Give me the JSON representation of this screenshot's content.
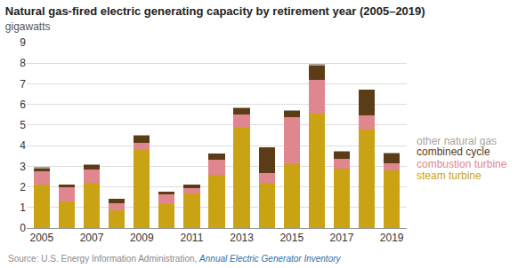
{
  "chart_data": {
    "type": "bar",
    "title": "Natural gas-fired electric generating capacity by retirement year (2005–2019)",
    "subtitle": "gigawatts",
    "source": [
      "Source: U.S. Energy Information Administration,",
      "Annual Electric Generator Inventory"
    ],
    "categories": [
      "2005",
      null,
      "2007",
      null,
      "2009",
      null,
      "2011",
      null,
      "2013",
      null,
      "2015",
      null,
      "2017",
      null,
      "2019"
    ],
    "series": [
      {
        "name": "steam turbine",
        "color": "#c9a314",
        "values": [
          2.1,
          1.3,
          2.2,
          0.85,
          3.8,
          1.15,
          1.7,
          2.6,
          4.85,
          2.2,
          3.1,
          5.55,
          2.9,
          4.8,
          2.8
        ]
      },
      {
        "name": "combustion turbine",
        "color": "#e0868f",
        "values": [
          0.65,
          0.7,
          0.65,
          0.35,
          0.35,
          0.5,
          0.25,
          0.7,
          0.65,
          0.45,
          2.3,
          1.65,
          0.45,
          0.65,
          0.35
        ]
      },
      {
        "name": "combined cycle",
        "color": "#5c3b17",
        "values": [
          0.15,
          0.1,
          0.2,
          0.2,
          0.35,
          0.1,
          0.15,
          0.3,
          0.3,
          1.25,
          0.3,
          0.7,
          0.35,
          1.25,
          0.45
        ]
      },
      {
        "name": "other natural gas",
        "color": "#a9a39a",
        "values": [
          0.05,
          0.03,
          0.05,
          0.03,
          0.03,
          0.03,
          0.03,
          0.02,
          0.05,
          0.02,
          0.02,
          0.05,
          0.03,
          0.02,
          0.05
        ]
      }
    ],
    "ylim": [
      0,
      9
    ],
    "yticks": [
      0,
      1,
      2,
      3,
      4,
      5,
      6,
      7,
      8,
      9
    ],
    "stacked": true,
    "grid": true,
    "legend": "right"
  }
}
